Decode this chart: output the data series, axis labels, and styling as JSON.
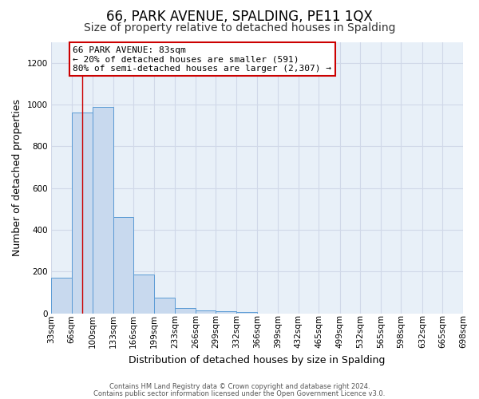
{
  "title": "66, PARK AVENUE, SPALDING, PE11 1QX",
  "subtitle": "Size of property relative to detached houses in Spalding",
  "xlabel": "Distribution of detached houses by size in Spalding",
  "ylabel": "Number of detached properties",
  "footer_line1": "Contains HM Land Registry data © Crown copyright and database right 2024.",
  "footer_line2": "Contains public sector information licensed under the Open Government Licence v3.0.",
  "bin_edges": [
    33,
    66,
    100,
    133,
    166,
    199,
    233,
    266,
    299,
    332,
    366,
    399,
    432,
    465,
    499,
    532,
    565,
    598,
    632,
    665,
    698
  ],
  "bar_heights": [
    170,
    960,
    990,
    460,
    185,
    75,
    25,
    15,
    10,
    5,
    0,
    0,
    0,
    0,
    0,
    0,
    0,
    0,
    0,
    0
  ],
  "bar_color": "#c8d9ee",
  "bar_edge_color": "#5b9bd5",
  "plot_bg_color": "#e8f0f8",
  "property_size": 83,
  "vline_color": "#cc0000",
  "ann_line1": "66 PARK AVENUE: 83sqm",
  "ann_line2": "← 20% of detached houses are smaller (591)",
  "ann_line3": "80% of semi-detached houses are larger (2,307) →",
  "annotation_box_color": "#ffffff",
  "annotation_box_edge_color": "#cc0000",
  "ylim": [
    0,
    1300
  ],
  "yticks": [
    0,
    200,
    400,
    600,
    800,
    1000,
    1200
  ],
  "grid_color": "#d0d8e8",
  "background_color": "#ffffff",
  "title_fontsize": 12,
  "subtitle_fontsize": 10,
  "ylabel_fontsize": 9,
  "xlabel_fontsize": 9,
  "tick_fontsize": 7.5
}
